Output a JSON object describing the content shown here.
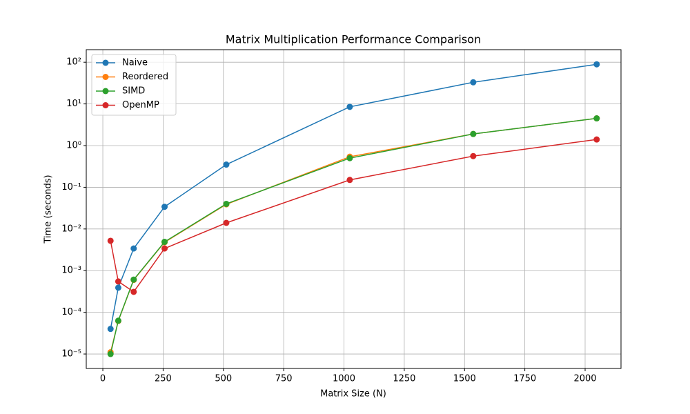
{
  "chart_data": {
    "type": "line",
    "title": "Matrix Multiplication Performance Comparison",
    "x_label": "Matrix Size (N)",
    "y_label": "Time (seconds)",
    "x": [
      32,
      64,
      128,
      256,
      512,
      1024,
      1536,
      2048
    ],
    "series": [
      {
        "name": "Naive",
        "color": "#1f77b4",
        "values": [
          4e-05,
          0.00039,
          0.0034,
          0.034,
          0.35,
          8.5,
          33,
          89
        ]
      },
      {
        "name": "Reordered",
        "color": "#ff7f0e",
        "values": [
          1.1e-05,
          6.2e-05,
          0.0006,
          0.0048,
          0.039,
          0.54,
          1.9,
          4.5
        ]
      },
      {
        "name": "SIMD",
        "color": "#2ca02c",
        "values": [
          1e-05,
          6.3e-05,
          0.00061,
          0.0049,
          0.04,
          0.5,
          1.9,
          4.5
        ]
      },
      {
        "name": "OpenMP",
        "color": "#d62728",
        "values": [
          0.0052,
          0.00055,
          0.00031,
          0.0034,
          0.014,
          0.15,
          0.56,
          1.4
        ]
      }
    ],
    "xlim": [
      -68.8,
      2148.8
    ],
    "xticks": [
      0,
      250,
      500,
      750,
      1000,
      1250,
      1500,
      1750,
      2000
    ],
    "ylim": [
      4.5e-06,
      200
    ],
    "yticks": [
      {
        "value": 1e-05,
        "label": "10⁻⁵"
      },
      {
        "value": 0.0001,
        "label": "10⁻⁴"
      },
      {
        "value": 0.001,
        "label": "10⁻³"
      },
      {
        "value": 0.01,
        "label": "10⁻²"
      },
      {
        "value": 0.1,
        "label": "10⁻¹"
      },
      {
        "value": 1,
        "label": "10⁰"
      },
      {
        "value": 10,
        "label": "10¹"
      },
      {
        "value": 100,
        "label": "10²"
      }
    ],
    "y_scale": "log",
    "grid": true,
    "legend": "upper-left"
  }
}
